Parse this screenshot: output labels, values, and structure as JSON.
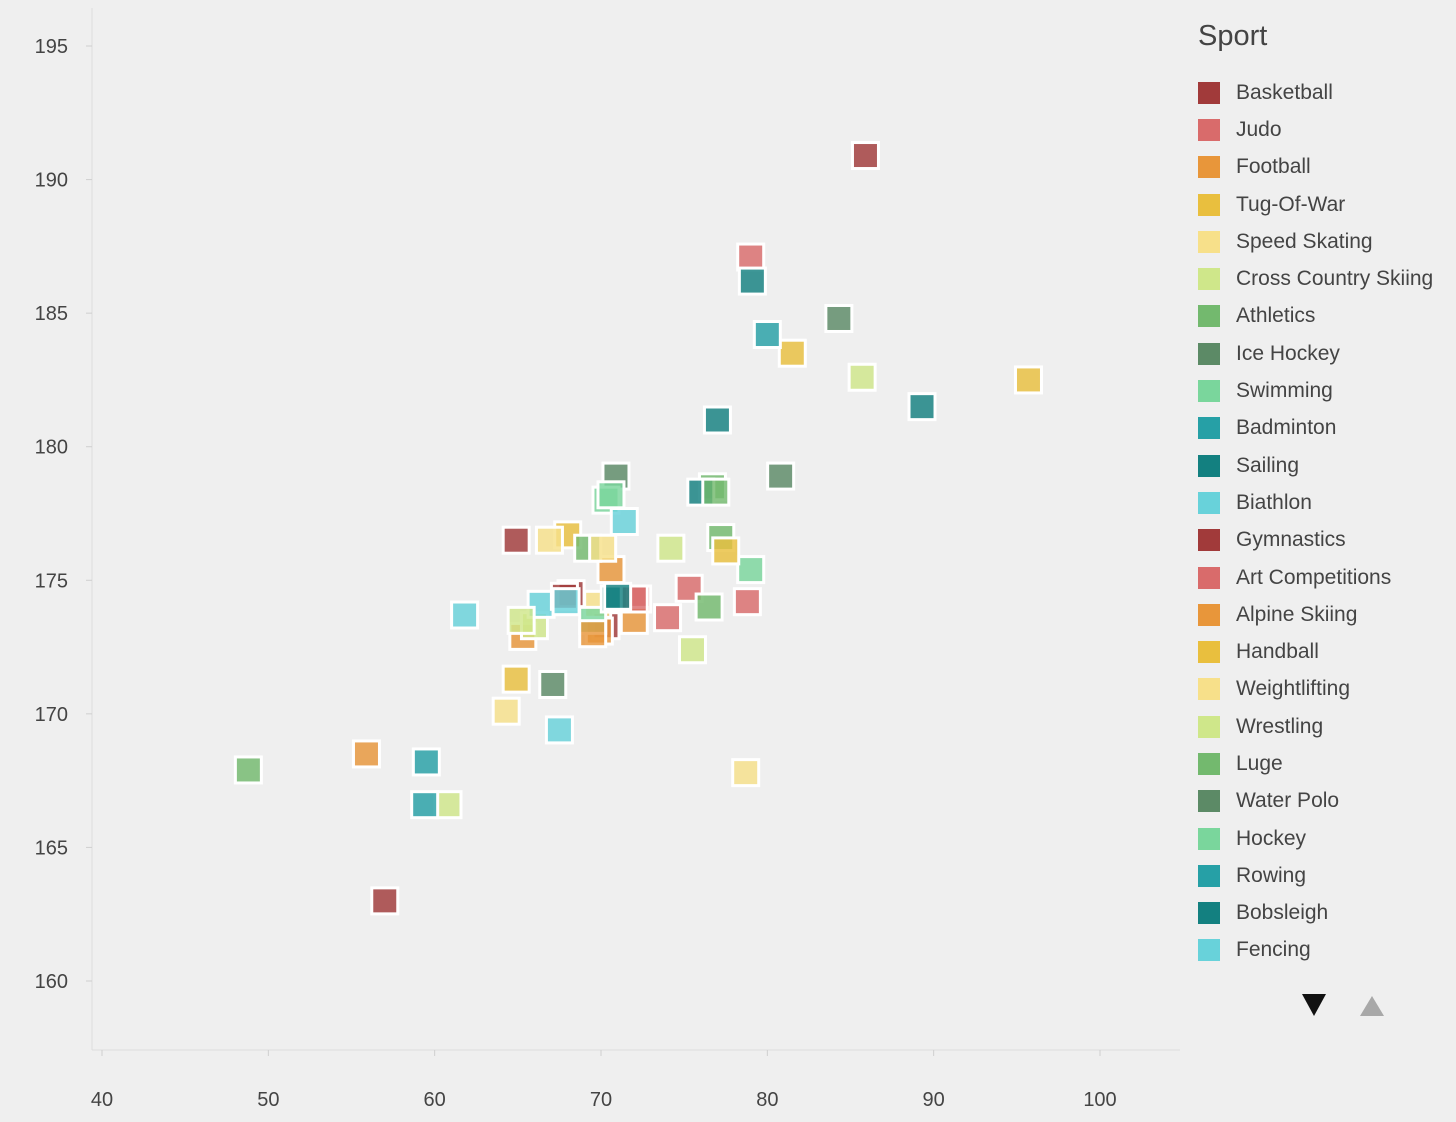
{
  "chart_data": {
    "type": "scatter",
    "title": "",
    "xlabel": "",
    "ylabel": "",
    "xlim": [
      39,
      105
    ],
    "ylim": [
      157.5,
      196.5
    ],
    "xticks": [
      40,
      50,
      60,
      70,
      80,
      90,
      100
    ],
    "yticks": [
      160,
      165,
      170,
      175,
      180,
      185,
      190,
      195
    ],
    "grid": false,
    "legend_placement": "right",
    "marker": "square",
    "legend_title": "Sport",
    "series": [
      {
        "name": "Basketball",
        "color": "#a13a3a",
        "points": [
          [
            85.9,
            190.9
          ],
          [
            57.0,
            163.0
          ],
          [
            68.2,
            174.5
          ],
          [
            70.3,
            173.3
          ]
        ]
      },
      {
        "name": "Judo",
        "color": "#d96b6b",
        "points": [
          [
            79.0,
            187.1
          ],
          [
            75.3,
            174.7
          ],
          [
            74.0,
            173.6
          ],
          [
            72.2,
            174.3
          ]
        ]
      },
      {
        "name": "Football",
        "color": "#e8963a",
        "points": [
          [
            55.9,
            168.5
          ],
          [
            65.3,
            172.9
          ],
          [
            70.6,
            175.4
          ],
          [
            72.0,
            173.5
          ],
          [
            69.9,
            173.1
          ]
        ]
      },
      {
        "name": "Tug-Of-War",
        "color": "#e9bf3e",
        "points": [
          [
            95.7,
            182.5
          ],
          [
            81.5,
            183.5
          ],
          [
            64.9,
            171.3
          ],
          [
            68.0,
            176.7
          ]
        ]
      },
      {
        "name": "Speed Skating",
        "color": "#f7e08a",
        "points": [
          [
            78.7,
            167.8
          ],
          [
            64.3,
            170.1
          ],
          [
            66.9,
            176.5
          ],
          [
            69.8,
            174.1
          ]
        ]
      },
      {
        "name": "Cross Country Skiing",
        "color": "#cfe78a",
        "points": [
          [
            85.7,
            182.6
          ],
          [
            74.2,
            176.2
          ],
          [
            75.5,
            172.4
          ],
          [
            60.8,
            166.6
          ],
          [
            66.0,
            173.3
          ]
        ]
      },
      {
        "name": "Athletics",
        "color": "#73b96e",
        "points": [
          [
            48.8,
            167.9
          ],
          [
            76.7,
            178.5
          ],
          [
            76.5,
            174.0
          ],
          [
            77.2,
            176.6
          ],
          [
            69.2,
            176.2
          ]
        ]
      },
      {
        "name": "Ice Hockey",
        "color": "#5c8a66",
        "points": [
          [
            84.3,
            184.8
          ],
          [
            80.8,
            178.9
          ],
          [
            70.9,
            178.9
          ],
          [
            67.1,
            171.1
          ]
        ]
      },
      {
        "name": "Swimming",
        "color": "#7ad69c",
        "points": [
          [
            70.3,
            178.0
          ],
          [
            79.0,
            175.4
          ],
          [
            69.5,
            173.5
          ]
        ]
      },
      {
        "name": "Badminton",
        "color": "#26a0a6",
        "points": [
          [
            80.0,
            184.2
          ],
          [
            59.5,
            168.2
          ],
          [
            59.4,
            166.6
          ]
        ]
      },
      {
        "name": "Sailing",
        "color": "#138080",
        "points": [
          [
            79.1,
            186.2
          ],
          [
            77.0,
            181.0
          ],
          [
            89.3,
            181.5
          ],
          [
            76.0,
            178.3
          ],
          [
            70.8,
            174.3
          ]
        ]
      },
      {
        "name": "Biathlon",
        "color": "#68d2da",
        "points": [
          [
            71.4,
            177.2
          ],
          [
            61.8,
            173.7
          ],
          [
            67.5,
            169.4
          ],
          [
            66.4,
            174.1
          ]
        ]
      },
      {
        "name": "Gymnastics",
        "color": "#a13a3a",
        "points": [
          [
            64.9,
            176.5
          ],
          [
            67.8,
            174.4
          ]
        ]
      },
      {
        "name": "Art Competitions",
        "color": "#d96b6b",
        "points": [
          [
            78.8,
            174.2
          ],
          [
            72.0,
            174.3
          ]
        ]
      },
      {
        "name": "Alpine Skiing",
        "color": "#e8963a",
        "points": [
          [
            69.5,
            173.0
          ]
        ]
      },
      {
        "name": "Handball",
        "color": "#e9bf3e",
        "points": [
          [
            77.5,
            176.1
          ]
        ]
      },
      {
        "name": "Weightlifting",
        "color": "#f7e08a",
        "points": [
          [
            70.1,
            176.2
          ]
        ]
      },
      {
        "name": "Wrestling",
        "color": "#cfe78a",
        "points": [
          [
            65.2,
            173.5
          ]
        ]
      },
      {
        "name": "Luge",
        "color": "#73b96e",
        "points": [
          [
            76.9,
            178.3
          ]
        ]
      },
      {
        "name": "Water Polo",
        "color": "#5c8a66",
        "points": []
      },
      {
        "name": "Hockey",
        "color": "#7ad69c",
        "points": [
          [
            70.6,
            178.2
          ]
        ]
      },
      {
        "name": "Rowing",
        "color": "#26a0a6",
        "points": []
      },
      {
        "name": "Bobsleigh",
        "color": "#138080",
        "points": [
          [
            71.0,
            174.4
          ]
        ]
      },
      {
        "name": "Fencing",
        "color": "#68d2da",
        "points": [
          [
            67.9,
            174.2
          ]
        ]
      }
    ]
  },
  "legend": {
    "title": "Sport"
  }
}
